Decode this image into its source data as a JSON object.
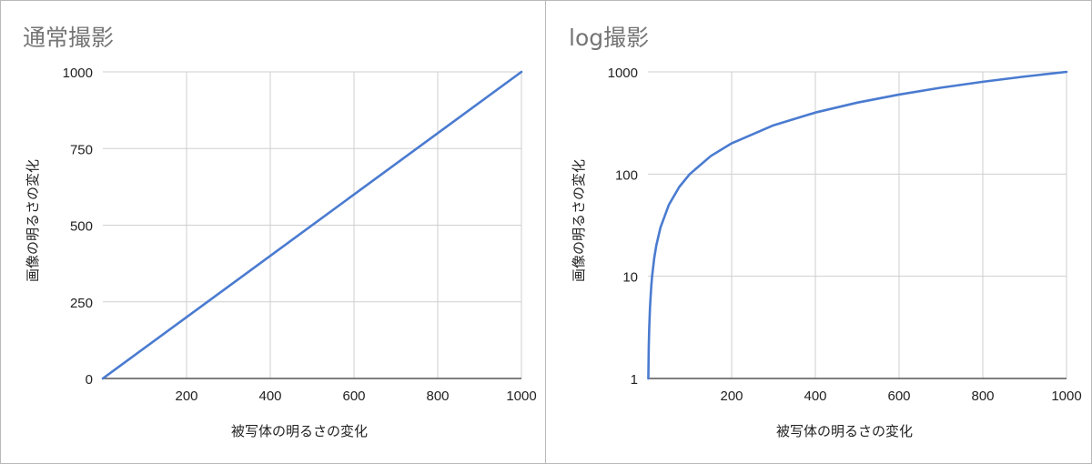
{
  "chart_data": [
    {
      "type": "line",
      "title": "通常撮影",
      "xlabel": "被写体の明るさの変化",
      "ylabel": "画像の明るさの変化",
      "xlim": [
        0,
        1000
      ],
      "ylim": [
        0,
        1000
      ],
      "yscale": "linear",
      "xticks": [
        200,
        400,
        600,
        800,
        1000
      ],
      "yticks": [
        0,
        250,
        500,
        750,
        1000
      ],
      "grid": true,
      "series": [
        {
          "color": "#4a7bd0",
          "x": [
            0,
            1000
          ],
          "y": [
            0,
            1000
          ]
        }
      ]
    },
    {
      "type": "line",
      "title": "log撮影",
      "xlabel": "被写体の明るさの変化",
      "ylabel": "画像の明るさの変化",
      "xlim": [
        0,
        1000
      ],
      "ylim": [
        1,
        1000
      ],
      "yscale": "log",
      "xticks": [
        200,
        400,
        600,
        800,
        1000
      ],
      "yticks": [
        1,
        10,
        100,
        1000
      ],
      "grid": true,
      "series": [
        {
          "color": "#4a7bd0",
          "x": [
            1,
            2,
            3,
            5,
            8,
            10,
            15,
            20,
            30,
            50,
            75,
            100,
            150,
            200,
            300,
            400,
            500,
            600,
            700,
            800,
            900,
            1000
          ],
          "y": [
            1,
            2,
            3,
            5,
            8,
            10,
            15,
            20,
            30,
            50,
            75,
            100,
            150,
            200,
            300,
            400,
            500,
            600,
            700,
            800,
            900,
            1000
          ]
        }
      ]
    }
  ]
}
